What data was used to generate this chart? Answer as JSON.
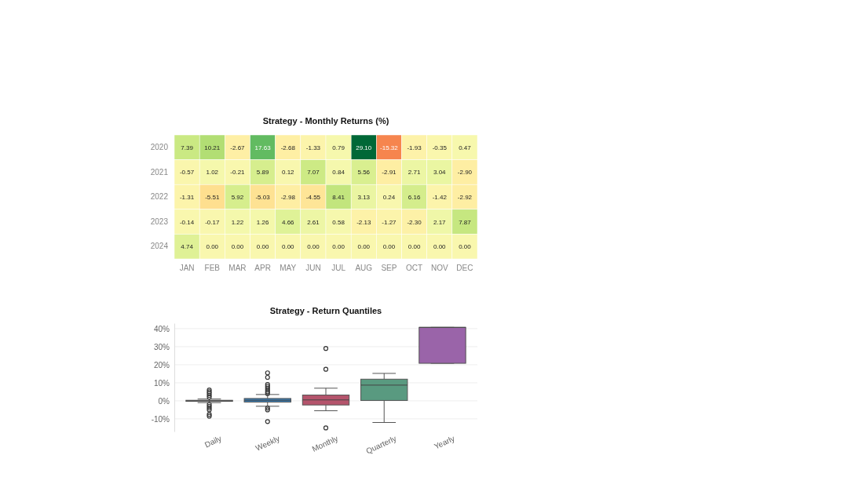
{
  "chart_data": [
    {
      "type": "heatmap",
      "title": "Strategy - Monthly Returns (%)",
      "categories": [
        "JAN",
        "FEB",
        "MAR",
        "APR",
        "MAY",
        "JUN",
        "JUL",
        "AUG",
        "SEP",
        "OCT",
        "NOV",
        "DEC"
      ],
      "y_categories": [
        "2020",
        "2021",
        "2022",
        "2023",
        "2024"
      ],
      "cells": [
        [
          7.39,
          10.21,
          -2.67,
          17.63,
          -2.68,
          -1.33,
          0.79,
          29.1,
          -15.32,
          -1.93,
          -0.35,
          0.47
        ],
        [
          -0.57,
          1.02,
          -0.21,
          5.89,
          0.12,
          7.07,
          0.84,
          5.56,
          -2.91,
          2.71,
          3.04,
          -2.9
        ],
        [
          -1.31,
          -5.51,
          5.92,
          -5.03,
          -2.98,
          -4.55,
          8.41,
          3.13,
          0.24,
          6.16,
          -1.42,
          -2.92
        ],
        [
          -0.14,
          -0.17,
          1.22,
          1.26,
          4.66,
          2.61,
          0.58,
          -2.13,
          -1.27,
          -2.3,
          2.17,
          7.87
        ],
        [
          4.74,
          0,
          0,
          0,
          0,
          0,
          0,
          0,
          0,
          0,
          0,
          0
        ]
      ],
      "cell_labels": [
        [
          "7.39",
          "10.21",
          "-2.67",
          "17.63",
          "-2.68",
          "-1.33",
          "0.79",
          "29.10",
          "-15.32",
          "-1.93",
          "-0.35",
          "0.47"
        ],
        [
          "-0.57",
          "1.02",
          "-0.21",
          "5.89",
          "0.12",
          "7.07",
          "0.84",
          "5.56",
          "-2.91",
          "2.71",
          "3.04",
          "-2.90"
        ],
        [
          "-1.31",
          "-5.51",
          "5.92",
          "-5.03",
          "-2.98",
          "-4.55",
          "8.41",
          "3.13",
          "0.24",
          "6.16",
          "-1.42",
          "-2.92"
        ],
        [
          "-0.14",
          "-0.17",
          "1.22",
          "1.26",
          "4.66",
          "2.61",
          "0.58",
          "-2.13",
          "-1.27",
          "-2.30",
          "2.17",
          "7.87"
        ],
        [
          "4.74",
          "0.00",
          "0.00",
          "0.00",
          "0.00",
          "0.00",
          "0.00",
          "0.00",
          "0.00",
          "0.00",
          "0.00",
          "0.00"
        ]
      ]
    },
    {
      "type": "box",
      "title": "Strategy - Return Quantiles",
      "categories": [
        "Daily",
        "Weekly",
        "Monthly",
        "Quarterly",
        "Yearly"
      ],
      "colors": [
        "#8c8c8c",
        "#3a7db5",
        "#b5546c",
        "#599a80",
        "#9a64a9"
      ],
      "boxes": [
        {
          "low": -1,
          "q1": -0.3,
          "median": 0,
          "q3": 0.3,
          "high": 1,
          "outliers": [
            6,
            5,
            4,
            3,
            2,
            -2,
            -3,
            -4,
            -5,
            -7.5,
            -8.5
          ]
        },
        {
          "low": -3,
          "q1": -0.7,
          "median": 0.3,
          "q3": 1.3,
          "high": 3.5,
          "outliers": [
            15.5,
            13,
            9,
            8,
            7,
            6,
            5,
            4,
            -4,
            -5,
            -11.5
          ]
        },
        {
          "low": -5.5,
          "q1": -2.3,
          "median": 0.5,
          "q3": 3.2,
          "high": 7,
          "outliers": [
            29,
            17.5,
            -15
          ]
        },
        {
          "low": -12,
          "q1": 0.2,
          "median": 8.7,
          "q3": 12,
          "high": 15.2
        },
        {
          "low": 20.8,
          "q1": 20.8,
          "median": 40.7,
          "q3": 40.7,
          "high": 40.7
        }
      ],
      "ylim": [
        -17,
        43
      ],
      "yticks": [
        {
          "value": -10,
          "label": "-10%"
        },
        {
          "value": 0,
          "label": "0%"
        },
        {
          "value": 10,
          "label": "10%"
        },
        {
          "value": 20,
          "label": "20%"
        },
        {
          "value": 30,
          "label": "30%"
        },
        {
          "value": 40,
          "label": "40%"
        }
      ],
      "grid": "y"
    }
  ]
}
